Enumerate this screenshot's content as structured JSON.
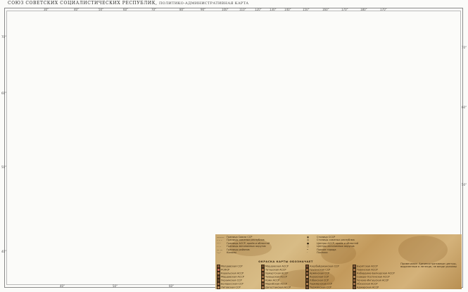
{
  "title": "СОЮЗ СОВЕТСКИХ СОЦИАЛИСТИЧЕСКИХ РЕСПУБЛИК",
  "subtitle": "ПОЛИТИКО-АДМИНИСТРАТИВНАЯ КАРТА",
  "top_ticks": [
    {
      "label": "30°",
      "side": "top"
    },
    {
      "label": "40°",
      "side": "top"
    },
    {
      "label": "50°",
      "side": "top"
    },
    {
      "label": "60°",
      "side": "top"
    },
    {
      "label": "70°",
      "side": "top"
    },
    {
      "label": "80°",
      "side": "top"
    },
    {
      "label": "90°",
      "side": "top"
    },
    {
      "label": "100°",
      "side": "top"
    },
    {
      "label": "110°",
      "side": "top"
    },
    {
      "label": "120°",
      "side": "top"
    },
    {
      "label": "130°",
      "side": "top"
    },
    {
      "label": "140°",
      "side": "top"
    },
    {
      "label": "150°",
      "side": "top"
    },
    {
      "label": "160°",
      "side": "top"
    },
    {
      "label": "170°",
      "side": "top"
    },
    {
      "label": "180°",
      "side": "top"
    },
    {
      "label": "170°",
      "side": "top"
    }
  ],
  "bottom_ticks": [
    "40°",
    "50°",
    "60°"
  ],
  "left_ticks": [
    "70°",
    "60°",
    "50°",
    "40°"
  ],
  "right_ticks": [
    "70°",
    "60°",
    "50°"
  ],
  "legend": {
    "symbols_left": [
      {
        "mark": "———",
        "label": "Граница Союза ССР"
      },
      {
        "mark": "– – –",
        "label": "Границы союзных республик"
      },
      {
        "mark": "·····",
        "label": "Границы АССР, краёв и областей"
      },
      {
        "mark": "- - -",
        "label": "Границы автономных округов"
      },
      {
        "mark": "— —",
        "label": "Границы районов"
      },
      {
        "mark": "·—·",
        "label": "Каналы"
      }
    ],
    "symbols_right": [
      {
        "mark": "◉",
        "label": "Столица СССР"
      },
      {
        "mark": "◎",
        "label": "Столицы союзных республик"
      },
      {
        "mark": "●",
        "label": "Центры АССР, краёв и областей"
      },
      {
        "mark": "○",
        "label": "Центры автономных округов"
      },
      {
        "mark": "•",
        "label": "Прочие города"
      },
      {
        "mark": "·",
        "label": "Посёлки"
      }
    ],
    "colors_title": "ОКРАСКА КАРТЫ ОБОЗНАЧАЕТ",
    "republics": [
      [
        {
          "name": "Молдавская ССР",
          "color": "#8f5a3a"
        },
        {
          "name": "РСФСР",
          "color": "#c76b58"
        },
        {
          "name": "Карельская АССР",
          "color": "#b27b4a"
        },
        {
          "name": "Мордовская АССР",
          "color": "#7d5436"
        },
        {
          "name": "Украинская ССР",
          "color": "#6c4a2c"
        },
        {
          "name": "Белорусская ССР",
          "color": "#9b6a43"
        },
        {
          "name": "Литовская ССР",
          "color": "#b98657"
        },
        {
          "name": "Латвийская ССР",
          "color": "#8a5c37"
        },
        {
          "name": "Эстонская ССР",
          "color": "#a4744b"
        }
      ],
      [
        {
          "name": "Мордовская АССР",
          "color": "#6e4a2b"
        },
        {
          "name": "Татарская АССР",
          "color": "#b07546"
        },
        {
          "name": "Удмуртская АССР",
          "color": "#80563a"
        },
        {
          "name": "Чувашская АССР",
          "color": "#9c6b40"
        },
        {
          "name": "Коми АССР",
          "color": "#c48b5a"
        },
        {
          "name": "Марийская АССР",
          "color": "#85593a"
        },
        {
          "name": "Дагестанская АССР",
          "color": "#a8784c"
        },
        {
          "name": "Башкирская АССР",
          "color": "#76502f"
        },
        {
          "name": "Калмыцкая АССР",
          "color": "#b0804e"
        }
      ],
      [
        {
          "name": "Азербайджанская ССР",
          "color": "#7a5033"
        },
        {
          "name": "Грузинская ССР",
          "color": "#a06a3f"
        },
        {
          "name": "Армянская ССР",
          "color": "#8d603c"
        },
        {
          "name": "Казахская ССР",
          "color": "#c09060"
        },
        {
          "name": "Узбекская ССР",
          "color": "#6f4b2e"
        },
        {
          "name": "Туркменская ССР",
          "color": "#aa7a4b"
        },
        {
          "name": "Таджикская ССР",
          "color": "#7e5637"
        },
        {
          "name": "Киргизская ССР",
          "color": "#b5855a"
        },
        {
          "name": "Якутская АССР",
          "color": "#94653f"
        }
      ],
      [
        {
          "name": "Бурятская АССР",
          "color": "#83593a"
        },
        {
          "name": "Тувинская АССР",
          "color": "#a77448"
        },
        {
          "name": "Кабардино-Балкарская АССР",
          "color": "#6d492c"
        },
        {
          "name": "Северо-Осетинская АССР",
          "color": "#b68656"
        },
        {
          "name": "Чечено-Ингушская АССР",
          "color": "#8c5f3b"
        },
        {
          "name": "Абхазская АССР",
          "color": "#a0704a"
        },
        {
          "name": "Аджарская АССР",
          "color": "#7b5335"
        },
        {
          "name": "Нахичеванская АССР",
          "color": "#b88a5c"
        },
        {
          "name": "Каракалпакская АССР",
          "color": "#96683f"
        }
      ]
    ],
    "note": "Примечание: Административные центры, выделенные в легенде, не везде указаны"
  }
}
